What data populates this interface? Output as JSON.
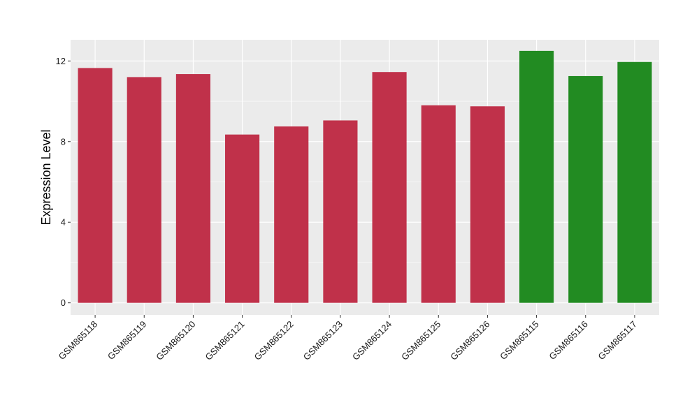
{
  "chart_data": {
    "type": "bar",
    "title": "",
    "xlabel": "",
    "ylabel": "Expression Level",
    "ylim": [
      -0.6,
      13.05
    ],
    "yticks": [
      0,
      4,
      8,
      12
    ],
    "grid": true,
    "legend": "none",
    "categories": [
      "GSM865118",
      "GSM865119",
      "GSM865120",
      "GSM865121",
      "GSM865122",
      "GSM865123",
      "GSM865124",
      "GSM865125",
      "GSM865126",
      "GSM865115",
      "GSM865116",
      "GSM865117"
    ],
    "values": [
      11.65,
      11.2,
      11.35,
      8.35,
      8.75,
      9.05,
      11.45,
      9.8,
      9.75,
      12.5,
      11.25,
      11.95
    ],
    "colors": [
      "#c0314a",
      "#c0314a",
      "#c0314a",
      "#c0314a",
      "#c0314a",
      "#c0314a",
      "#c0314a",
      "#c0314a",
      "#c0314a",
      "#228b22",
      "#228b22",
      "#228b22"
    ],
    "panel_background": "#ebebeb",
    "grid_color": "#ffffff"
  }
}
